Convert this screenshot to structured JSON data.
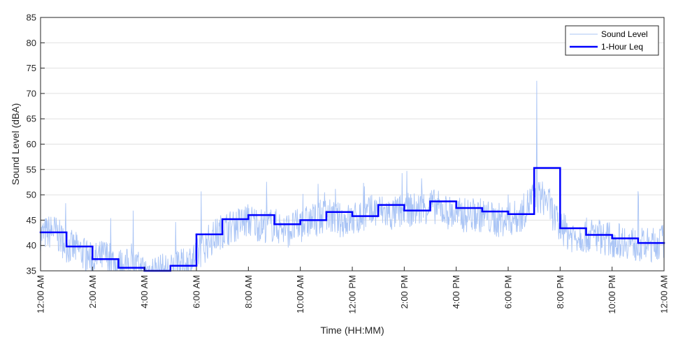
{
  "chart_data": {
    "type": "line",
    "title": "",
    "xlabel": "Time (HH:MM)",
    "ylabel": "Sound Level (dBA)",
    "xlim_hours": [
      0,
      24
    ],
    "ylim": [
      35,
      85
    ],
    "y_ticks": [
      35,
      40,
      45,
      50,
      55,
      60,
      65,
      70,
      75,
      80,
      85
    ],
    "x_ticks": [
      {
        "hour": 0,
        "label": "12:00 AM"
      },
      {
        "hour": 2,
        "label": "2:00 AM"
      },
      {
        "hour": 4,
        "label": "4:00 AM"
      },
      {
        "hour": 6,
        "label": "6:00 AM"
      },
      {
        "hour": 8,
        "label": "8:00 AM"
      },
      {
        "hour": 10,
        "label": "10:00 AM"
      },
      {
        "hour": 12,
        "label": "12:00 PM"
      },
      {
        "hour": 14,
        "label": "2:00 PM"
      },
      {
        "hour": 16,
        "label": "4:00 PM"
      },
      {
        "hour": 18,
        "label": "6:00 PM"
      },
      {
        "hour": 20,
        "label": "8:00 PM"
      },
      {
        "hour": 22,
        "label": "10:00 PM"
      },
      {
        "hour": 24,
        "label": "12:00 AM"
      }
    ],
    "grid": "horizontal",
    "legend_position": "top-right",
    "series": [
      {
        "name": "Sound Level",
        "style": "thin line",
        "color": "#a9c4f5",
        "x_hours": [
          0,
          0.5,
          1,
          1.5,
          2,
          2.5,
          3,
          3.5,
          4,
          4.5,
          5,
          5.5,
          6,
          6.5,
          7,
          7.5,
          8,
          8.5,
          9,
          9.5,
          10,
          10.5,
          11,
          11.5,
          12,
          12.5,
          13,
          13.5,
          14,
          14.5,
          15,
          15.5,
          16,
          16.5,
          17,
          17.5,
          18,
          18.5,
          19,
          19.5,
          20,
          20.5,
          21,
          21.5,
          22,
          22.5,
          23,
          23.5,
          24
        ],
        "values": [
          42,
          43,
          40,
          39,
          37,
          38,
          36,
          36,
          35,
          35,
          35,
          36,
          38,
          41,
          43,
          44,
          45,
          44,
          44,
          43,
          44,
          45,
          46,
          45,
          45,
          46,
          47,
          46,
          47,
          47,
          48,
          47,
          46,
          46,
          46,
          45,
          45,
          46,
          50,
          49,
          43,
          42,
          42,
          42,
          41,
          41,
          40,
          40,
          41
        ]
      },
      {
        "name": "1-Hour Leq",
        "style": "step",
        "color": "#0000ff",
        "hour_start": [
          0,
          1,
          2,
          3,
          4,
          5,
          6,
          7,
          8,
          9,
          10,
          11,
          12,
          13,
          14,
          15,
          16,
          17,
          18,
          19,
          20,
          21,
          22,
          23
        ],
        "values": [
          42.6,
          39.8,
          37.3,
          35.6,
          35.0,
          36.0,
          42.2,
          45.2,
          46.0,
          44.2,
          45.0,
          46.6,
          45.8,
          48.0,
          46.9,
          48.7,
          47.4,
          46.7,
          46.2,
          55.3,
          43.4,
          42.1,
          41.4,
          40.5
        ]
      }
    ],
    "annotations": [
      {
        "series": "Sound Level",
        "note": "spike",
        "x_hour": 19.1,
        "value": 72.5
      }
    ]
  }
}
